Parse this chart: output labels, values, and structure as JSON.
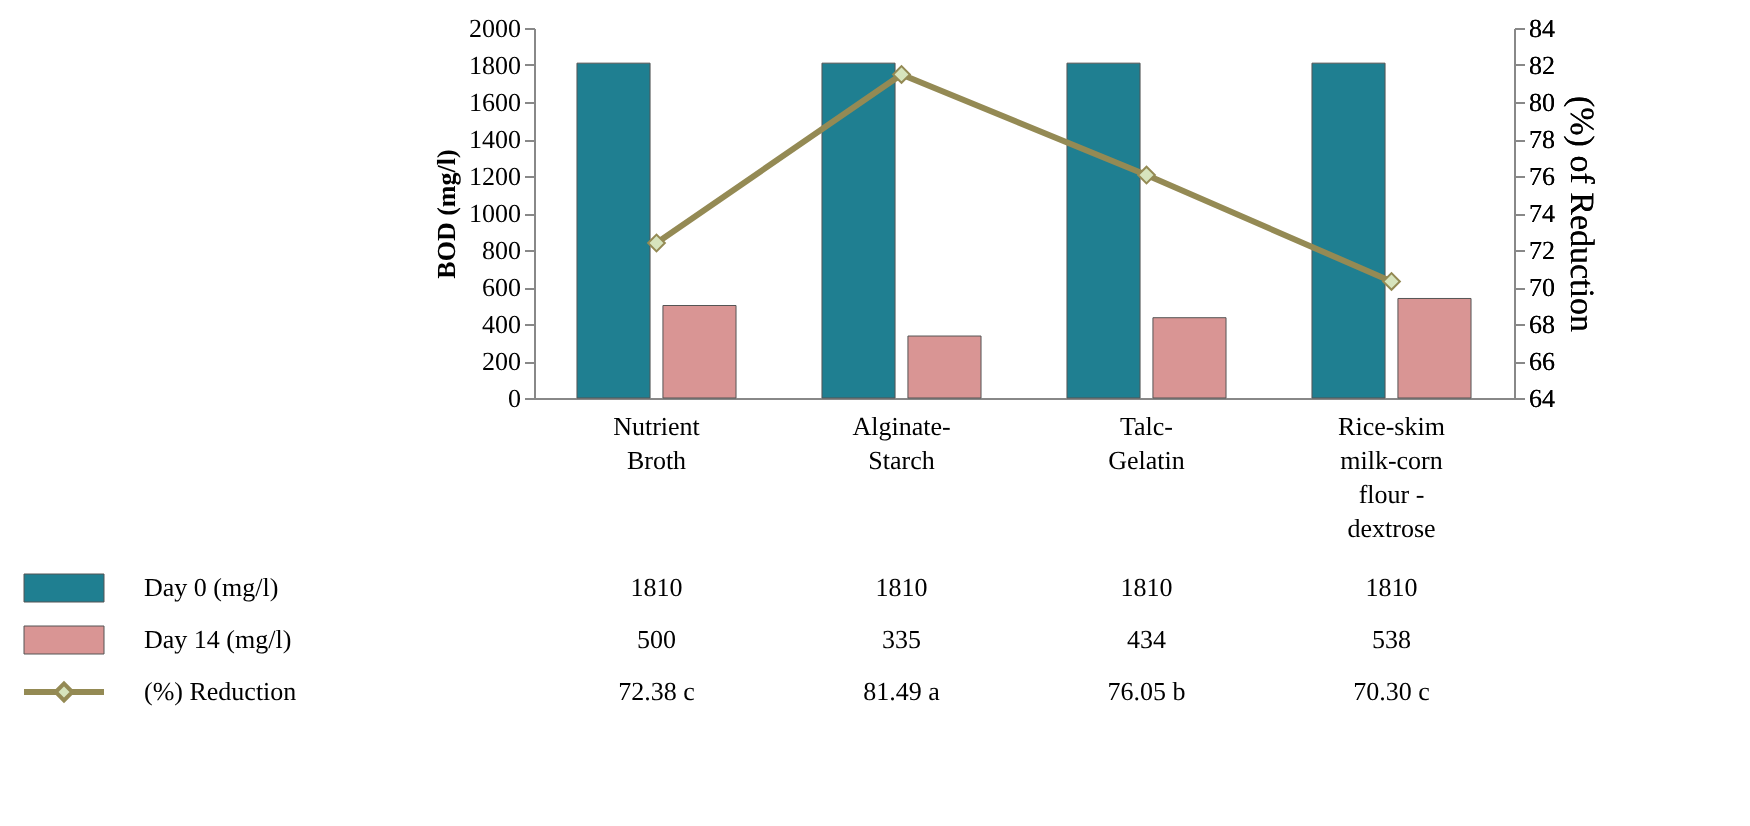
{
  "chart_data": {
    "type": "bar",
    "categories": [
      "Nutrient Broth",
      "Alginate-Starch",
      "Talc-Gelatin",
      "Rice-skim milk-corn flour - dextrose"
    ],
    "series": [
      {
        "name": "Day 0 (mg/l)",
        "color": "#1f7f91",
        "values": [
          1810,
          1810,
          1810,
          1810
        ],
        "value_labels": [
          "1810",
          "1810",
          "1810",
          "1810"
        ]
      },
      {
        "name": "Day 14 (mg/l)",
        "color": "#d99594",
        "values": [
          500,
          335,
          434,
          538
        ],
        "value_labels": [
          "500",
          "335",
          "434",
          "538"
        ]
      },
      {
        "name": "(%) Reduction",
        "type": "line",
        "axis": "y2",
        "color": "#948a54",
        "marker": "diamond",
        "values": [
          72.38,
          81.49,
          76.05,
          70.3
        ],
        "value_labels": [
          "72.38 c",
          "81.49 a",
          "76.05 b",
          "70.30 c"
        ]
      }
    ],
    "ylabel": "BOD (mg/l)",
    "y2label": "(%) of Reduction",
    "ylim": [
      0,
      2000
    ],
    "yticks": [
      0,
      200,
      400,
      600,
      800,
      1000,
      1200,
      1400,
      1600,
      1800,
      2000
    ],
    "y2lim": [
      64,
      84
    ],
    "y2ticks": [
      64,
      66,
      68,
      70,
      72,
      74,
      76,
      78,
      80,
      82,
      84
    ],
    "legend": "bottom"
  }
}
